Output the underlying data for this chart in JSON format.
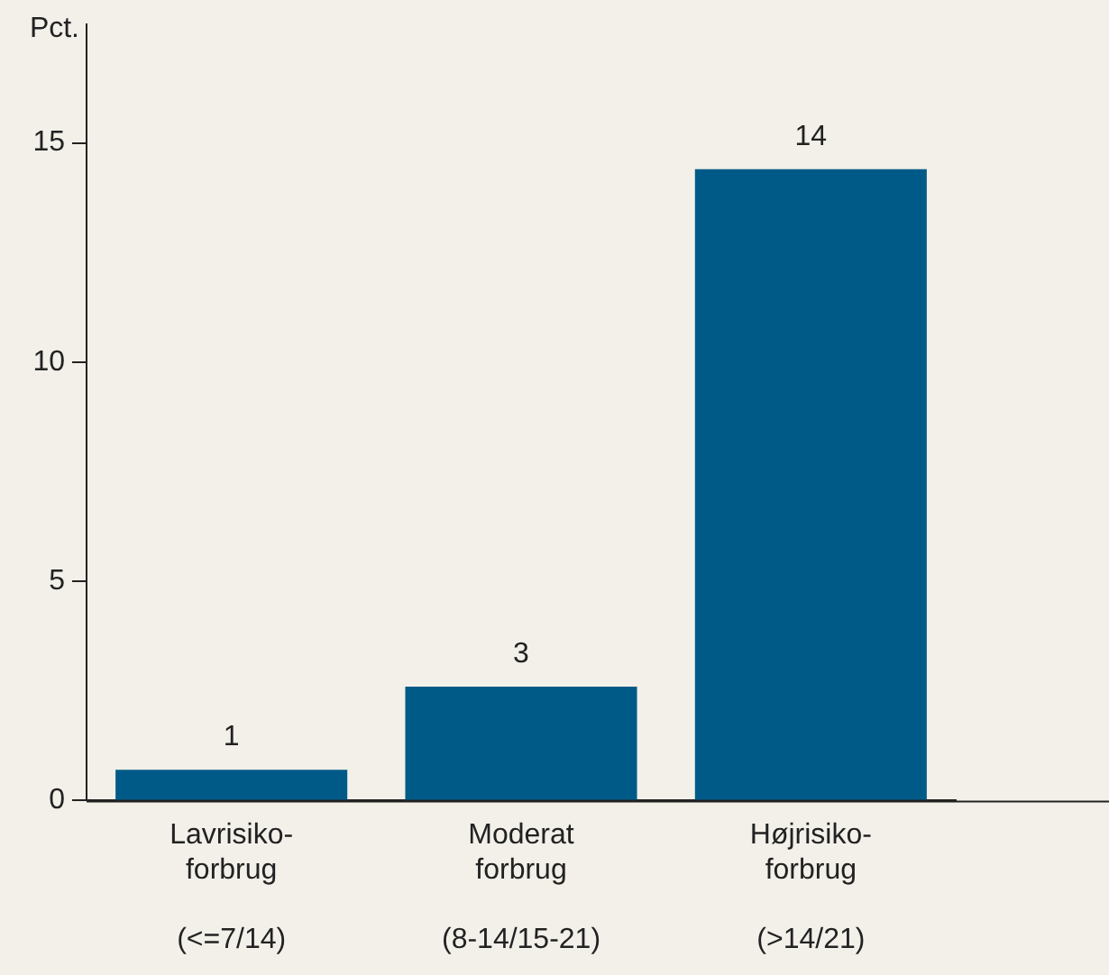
{
  "chart_data": {
    "type": "bar",
    "ylabel": "Pct.",
    "categories": [
      "Lavrisiko-\nforbrug\n\n(<=7/14)",
      "Moderat\nforbrug\n\n(8-14/15-21)",
      "Højrisiko-\nforbrug\n\n(>14/21)"
    ],
    "values": [
      0.7,
      2.6,
      14.4
    ],
    "value_labels": [
      "1",
      "3",
      "14"
    ],
    "color": "#005a87",
    "ylim": [
      0,
      17.7
    ],
    "yticks": [
      0,
      5,
      10,
      15
    ],
    "grid": false,
    "legend": false
  }
}
